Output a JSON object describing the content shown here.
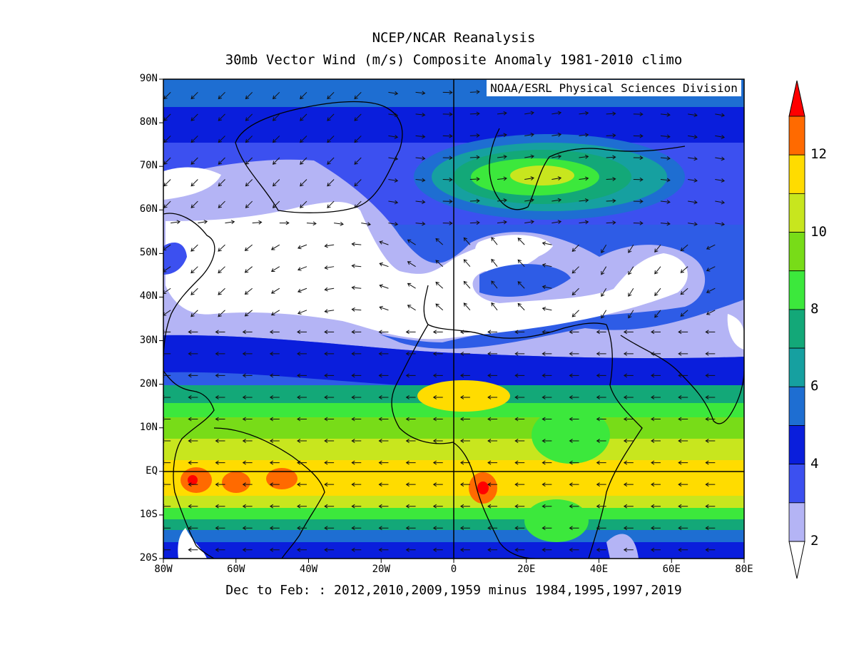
{
  "title": "NCEP/NCAR Reanalysis",
  "subtitle": "30mb Vector Wind (m/s) Composite Anomaly 1981-2010 climo",
  "credit": "NOAA/ESRL Physical Sciences Division",
  "footnote": "Dec to Feb: : 2012,2010,2009,1959 minus 1984,1995,1997,2019",
  "lat_labels": [
    "90N",
    "80N",
    "70N",
    "60N",
    "50N",
    "40N",
    "30N",
    "20N",
    "10N",
    "EQ",
    "10S",
    "20S"
  ],
  "lon_labels": [
    "80W",
    "60W",
    "40W",
    "20W",
    "0",
    "20E",
    "40E",
    "60E",
    "80E"
  ],
  "colorbar": {
    "labels": [
      "2",
      "4",
      "6",
      "8",
      "10",
      "12"
    ],
    "levels": [
      2,
      3,
      4,
      5,
      6,
      7,
      8,
      9,
      10,
      11,
      12,
      13
    ],
    "colors": [
      "#ffffff",
      "#b4b4f5",
      "#3c50f0",
      "#0a1edc",
      "#1e6ed2",
      "#16a0a0",
      "#13a878",
      "#3ce83c",
      "#78dc18",
      "#c8e61e",
      "#ffdc00",
      "#ff6a00",
      "#ff0000"
    ]
  },
  "map_extent": {
    "lon": [
      -80,
      80
    ],
    "lat": [
      -20,
      90
    ]
  }
}
